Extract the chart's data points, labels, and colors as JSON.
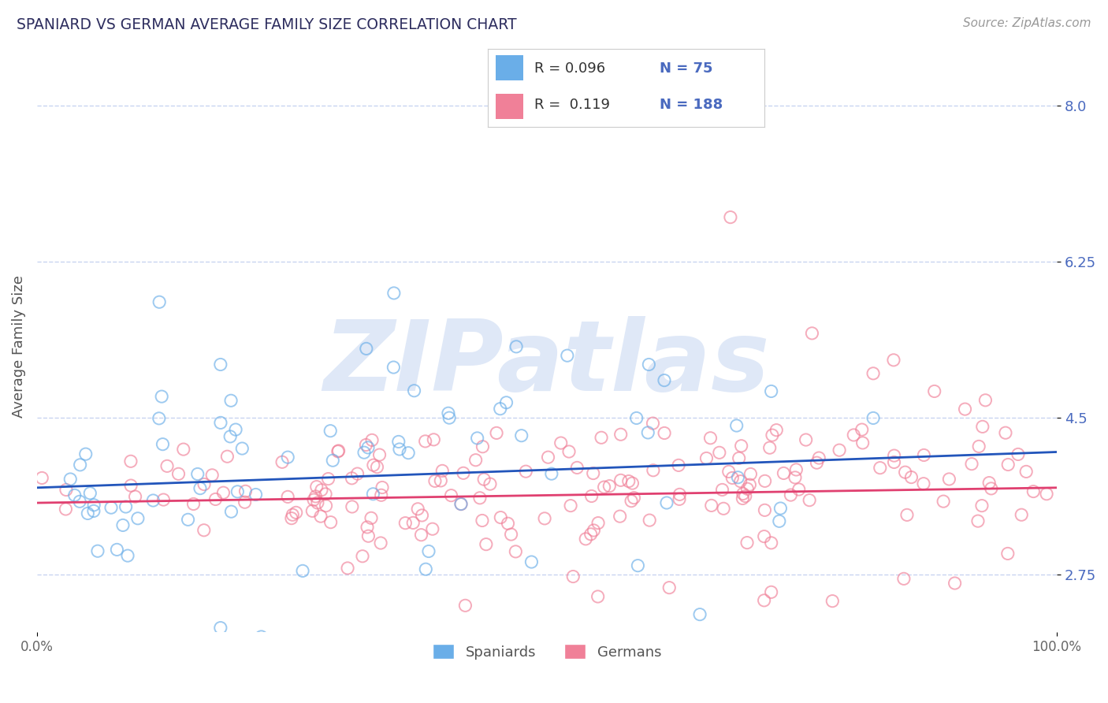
{
  "title": "SPANIARD VS GERMAN AVERAGE FAMILY SIZE CORRELATION CHART",
  "source": "Source: ZipAtlas.com",
  "ylabel": "Average Family Size",
  "xlim": [
    0.0,
    1.0
  ],
  "ylim": [
    2.1,
    8.5
  ],
  "yticks": [
    2.75,
    4.5,
    6.25,
    8.0
  ],
  "xticks": [
    0.0,
    1.0
  ],
  "xticklabels": [
    "0.0%",
    "100.0%"
  ],
  "spaniard_color": "#6AAEE8",
  "german_color": "#F08098",
  "spaniard_line_color": "#2255BB",
  "german_line_color": "#E04070",
  "spaniard_R": "0.096",
  "spaniard_N": "75",
  "german_R": "0.119",
  "german_N": "188",
  "watermark": "ZIPatlas",
  "legend_label_spaniard": "Spaniards",
  "legend_label_german": "Germans",
  "title_color": "#2d2d5e",
  "axis_color": "#4a6abf",
  "legend_number_color": "#4a6abf",
  "grid_color": "#c8d4f0",
  "background_color": "#ffffff",
  "seed": 99
}
